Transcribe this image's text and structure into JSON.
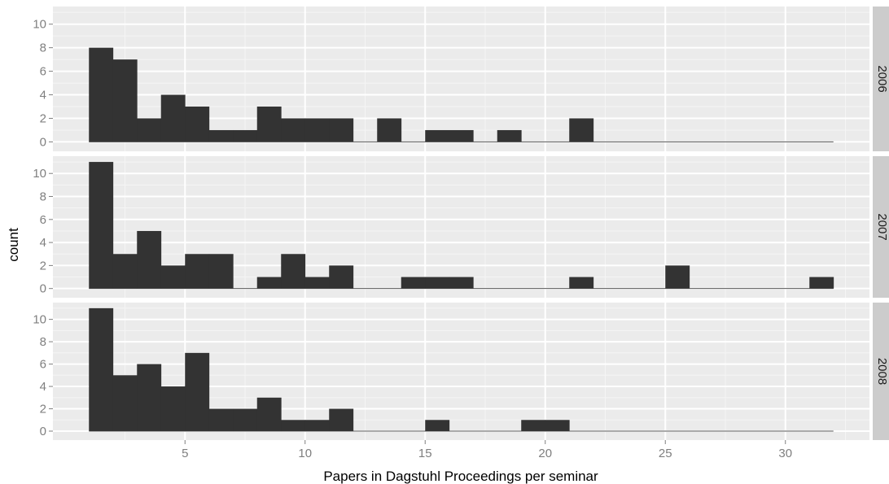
{
  "chart_data": {
    "type": "bar",
    "subtype": "faceted-histogram",
    "xlabel": "Papers in Dagstuhl Proceedings per seminar",
    "ylabel": "count",
    "xlim": [
      -0.5,
      33.5
    ],
    "x_ticks": [
      5,
      10,
      15,
      20,
      25,
      30
    ],
    "y_ticks": [
      0,
      2,
      4,
      6,
      8,
      10
    ],
    "bin_width": 1,
    "grid": true,
    "colors": {
      "panel_background": "#ebebeb",
      "grid_major": "#ffffff",
      "bar_fill": "#333333",
      "strip_background": "#cccccc"
    },
    "facets": [
      {
        "label": "2006",
        "ylim": [
          -0.8,
          11.5
        ],
        "bins": [
          {
            "x0": 1,
            "x1": 2,
            "count": 8
          },
          {
            "x0": 2,
            "x1": 3,
            "count": 7
          },
          {
            "x0": 3,
            "x1": 4,
            "count": 2
          },
          {
            "x0": 4,
            "x1": 5,
            "count": 4
          },
          {
            "x0": 5,
            "x1": 6,
            "count": 3
          },
          {
            "x0": 6,
            "x1": 7,
            "count": 1
          },
          {
            "x0": 7,
            "x1": 8,
            "count": 1
          },
          {
            "x0": 8,
            "x1": 9,
            "count": 3
          },
          {
            "x0": 9,
            "x1": 10,
            "count": 2
          },
          {
            "x0": 10,
            "x1": 11,
            "count": 2
          },
          {
            "x0": 11,
            "x1": 12,
            "count": 2
          },
          {
            "x0": 12,
            "x1": 13,
            "count": 0
          },
          {
            "x0": 13,
            "x1": 14,
            "count": 2
          },
          {
            "x0": 14,
            "x1": 15,
            "count": 0
          },
          {
            "x0": 15,
            "x1": 16,
            "count": 1
          },
          {
            "x0": 16,
            "x1": 17,
            "count": 1
          },
          {
            "x0": 17,
            "x1": 18,
            "count": 0
          },
          {
            "x0": 18,
            "x1": 19,
            "count": 1
          },
          {
            "x0": 19,
            "x1": 20,
            "count": 0
          },
          {
            "x0": 20,
            "x1": 21,
            "count": 0
          },
          {
            "x0": 21,
            "x1": 22,
            "count": 2
          },
          {
            "x0": 22,
            "x1": 23,
            "count": 0
          },
          {
            "x0": 23,
            "x1": 24,
            "count": 0
          },
          {
            "x0": 24,
            "x1": 25,
            "count": 0
          },
          {
            "x0": 25,
            "x1": 26,
            "count": 0
          },
          {
            "x0": 26,
            "x1": 27,
            "count": 0
          },
          {
            "x0": 27,
            "x1": 28,
            "count": 0
          },
          {
            "x0": 28,
            "x1": 29,
            "count": 0
          },
          {
            "x0": 29,
            "x1": 30,
            "count": 0
          },
          {
            "x0": 30,
            "x1": 31,
            "count": 0
          },
          {
            "x0": 31,
            "x1": 32,
            "count": 0
          }
        ]
      },
      {
        "label": "2007",
        "ylim": [
          -0.8,
          11.5
        ],
        "bins": [
          {
            "x0": 1,
            "x1": 2,
            "count": 11
          },
          {
            "x0": 2,
            "x1": 3,
            "count": 3
          },
          {
            "x0": 3,
            "x1": 4,
            "count": 5
          },
          {
            "x0": 4,
            "x1": 5,
            "count": 2
          },
          {
            "x0": 5,
            "x1": 6,
            "count": 3
          },
          {
            "x0": 6,
            "x1": 7,
            "count": 3
          },
          {
            "x0": 7,
            "x1": 8,
            "count": 0
          },
          {
            "x0": 8,
            "x1": 9,
            "count": 1
          },
          {
            "x0": 9,
            "x1": 10,
            "count": 3
          },
          {
            "x0": 10,
            "x1": 11,
            "count": 1
          },
          {
            "x0": 11,
            "x1": 12,
            "count": 2
          },
          {
            "x0": 12,
            "x1": 13,
            "count": 0
          },
          {
            "x0": 13,
            "x1": 14,
            "count": 0
          },
          {
            "x0": 14,
            "x1": 15,
            "count": 1
          },
          {
            "x0": 15,
            "x1": 16,
            "count": 1
          },
          {
            "x0": 16,
            "x1": 17,
            "count": 1
          },
          {
            "x0": 17,
            "x1": 18,
            "count": 0
          },
          {
            "x0": 18,
            "x1": 19,
            "count": 0
          },
          {
            "x0": 19,
            "x1": 20,
            "count": 0
          },
          {
            "x0": 20,
            "x1": 21,
            "count": 0
          },
          {
            "x0": 21,
            "x1": 22,
            "count": 1
          },
          {
            "x0": 22,
            "x1": 23,
            "count": 0
          },
          {
            "x0": 23,
            "x1": 24,
            "count": 0
          },
          {
            "x0": 24,
            "x1": 25,
            "count": 0
          },
          {
            "x0": 25,
            "x1": 26,
            "count": 2
          },
          {
            "x0": 26,
            "x1": 27,
            "count": 0
          },
          {
            "x0": 27,
            "x1": 28,
            "count": 0
          },
          {
            "x0": 28,
            "x1": 29,
            "count": 0
          },
          {
            "x0": 29,
            "x1": 30,
            "count": 0
          },
          {
            "x0": 30,
            "x1": 31,
            "count": 0
          },
          {
            "x0": 31,
            "x1": 32,
            "count": 1
          }
        ]
      },
      {
        "label": "2008",
        "ylim": [
          -0.8,
          11.5
        ],
        "bins": [
          {
            "x0": 1,
            "x1": 2,
            "count": 11
          },
          {
            "x0": 2,
            "x1": 3,
            "count": 5
          },
          {
            "x0": 3,
            "x1": 4,
            "count": 6
          },
          {
            "x0": 4,
            "x1": 5,
            "count": 4
          },
          {
            "x0": 5,
            "x1": 6,
            "count": 7
          },
          {
            "x0": 6,
            "x1": 7,
            "count": 2
          },
          {
            "x0": 7,
            "x1": 8,
            "count": 2
          },
          {
            "x0": 8,
            "x1": 9,
            "count": 3
          },
          {
            "x0": 9,
            "x1": 10,
            "count": 1
          },
          {
            "x0": 10,
            "x1": 11,
            "count": 1
          },
          {
            "x0": 11,
            "x1": 12,
            "count": 2
          },
          {
            "x0": 12,
            "x1": 13,
            "count": 0
          },
          {
            "x0": 13,
            "x1": 14,
            "count": 0
          },
          {
            "x0": 14,
            "x1": 15,
            "count": 0
          },
          {
            "x0": 15,
            "x1": 16,
            "count": 1
          },
          {
            "x0": 16,
            "x1": 17,
            "count": 0
          },
          {
            "x0": 17,
            "x1": 18,
            "count": 0
          },
          {
            "x0": 18,
            "x1": 19,
            "count": 0
          },
          {
            "x0": 19,
            "x1": 20,
            "count": 1
          },
          {
            "x0": 20,
            "x1": 21,
            "count": 1
          },
          {
            "x0": 21,
            "x1": 22,
            "count": 0
          },
          {
            "x0": 22,
            "x1": 23,
            "count": 0
          },
          {
            "x0": 23,
            "x1": 24,
            "count": 0
          },
          {
            "x0": 24,
            "x1": 25,
            "count": 0
          },
          {
            "x0": 25,
            "x1": 26,
            "count": 0
          },
          {
            "x0": 26,
            "x1": 27,
            "count": 0
          },
          {
            "x0": 27,
            "x1": 28,
            "count": 0
          },
          {
            "x0": 28,
            "x1": 29,
            "count": 0
          },
          {
            "x0": 29,
            "x1": 30,
            "count": 0
          },
          {
            "x0": 30,
            "x1": 31,
            "count": 0
          },
          {
            "x0": 31,
            "x1": 32,
            "count": 0
          }
        ]
      }
    ]
  }
}
